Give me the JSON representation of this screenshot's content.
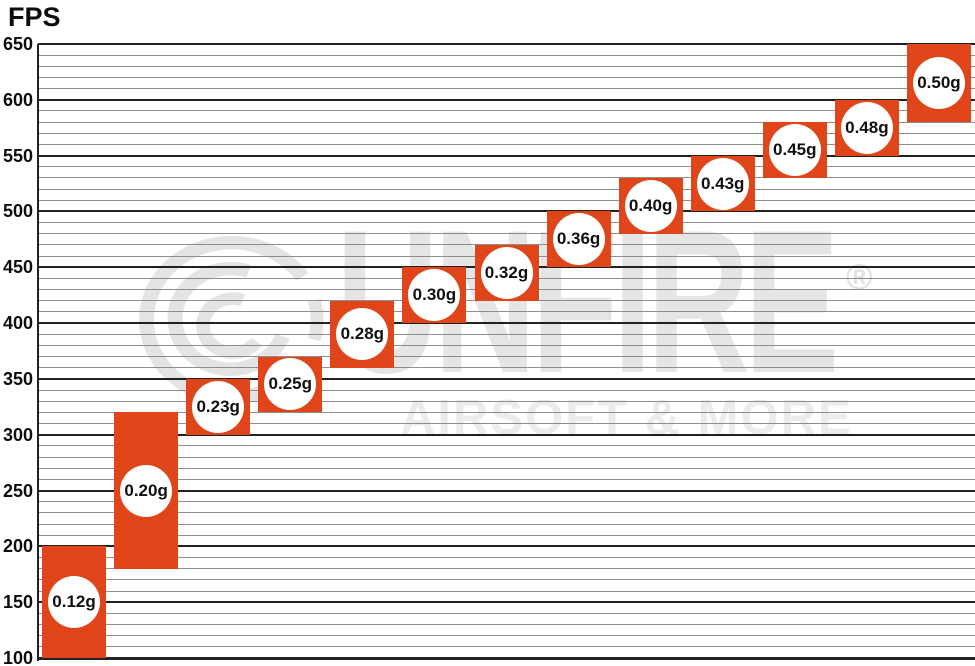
{
  "page": {
    "title": "FPS"
  },
  "watermark": {
    "brand": "GUNFIRE",
    "brand_letters_after_logo": "UNFIRE",
    "registered": "®",
    "tagline": "AIRSOFT & MORE",
    "logo": "gunfire-swirl-g-icon"
  },
  "colors": {
    "block_orange": "#e0451a",
    "circle_fill": "#ffffff",
    "grid_major": "#212121",
    "grid_minor": "#8e8e8e",
    "watermark_gray": "#e5e5e5",
    "text_black": "#0d0d0d"
  },
  "chart_data": {
    "type": "bar",
    "variant": "floating-range-columns",
    "title": "FPS",
    "ylabel": "FPS",
    "xlabel": "",
    "ylim": [
      100,
      650
    ],
    "y_major_step": 50,
    "y_minor_step": 10,
    "grid": true,
    "legend": false,
    "y_tick_labels": [
      "650",
      "600",
      "550",
      "500",
      "450",
      "400",
      "350",
      "300",
      "250",
      "200",
      "150",
      "100"
    ],
    "categories": [
      "0.12g",
      "0.20g",
      "0.23g",
      "0.25g",
      "0.28g",
      "0.30g",
      "0.32g",
      "0.36g",
      "0.40g",
      "0.43g",
      "0.45g",
      "0.48g",
      "0.50g"
    ],
    "ranges": [
      {
        "weight": "0.12g",
        "fps_min": 100,
        "fps_max": 200
      },
      {
        "weight": "0.20g",
        "fps_min": 180,
        "fps_max": 320
      },
      {
        "weight": "0.23g",
        "fps_min": 300,
        "fps_max": 350
      },
      {
        "weight": "0.25g",
        "fps_min": 320,
        "fps_max": 370
      },
      {
        "weight": "0.28g",
        "fps_min": 360,
        "fps_max": 420
      },
      {
        "weight": "0.30g",
        "fps_min": 400,
        "fps_max": 450
      },
      {
        "weight": "0.32g",
        "fps_min": 420,
        "fps_max": 470
      },
      {
        "weight": "0.36g",
        "fps_min": 450,
        "fps_max": 500
      },
      {
        "weight": "0.40g",
        "fps_min": 480,
        "fps_max": 530
      },
      {
        "weight": "0.43g",
        "fps_min": 500,
        "fps_max": 550
      },
      {
        "weight": "0.45g",
        "fps_min": 530,
        "fps_max": 580
      },
      {
        "weight": "0.48g",
        "fps_min": 550,
        "fps_max": 600
      },
      {
        "weight": "0.50g",
        "fps_min": 580,
        "fps_max": 650
      }
    ]
  }
}
